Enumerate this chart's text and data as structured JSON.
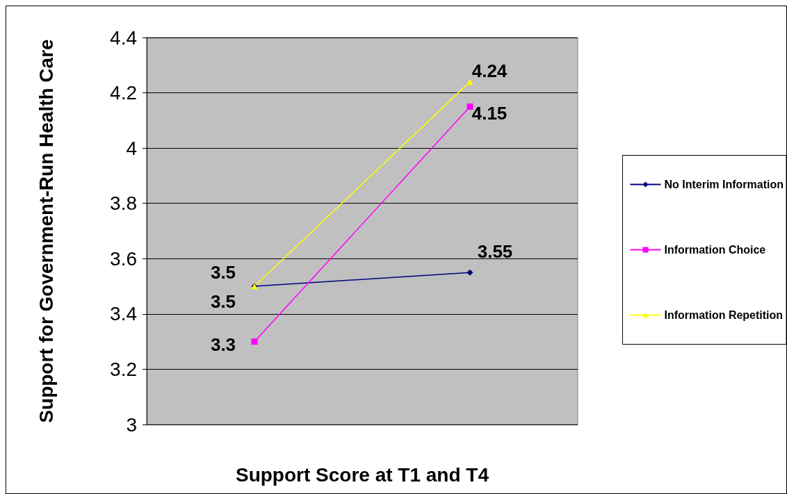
{
  "chart_data": {
    "type": "line",
    "xlabel": "Support Score at T1 and T4",
    "ylabel": "Support for Government-Run Health Care",
    "categories": [
      null,
      null
    ],
    "series": [
      {
        "name": "No Interim Information",
        "color": "#000080",
        "marker": "diamond",
        "values": [
          3.5,
          3.55
        ]
      },
      {
        "name": "Information Choice",
        "color": "#ff00ff",
        "marker": "square",
        "values": [
          3.3,
          4.15
        ]
      },
      {
        "name": "Information Repetition",
        "color": "#ffff00",
        "marker": "triangle",
        "values": [
          3.5,
          4.24
        ]
      }
    ],
    "ylim": [
      3,
      4.4
    ],
    "yticks": [
      3,
      3.2,
      3.4,
      3.6,
      3.8,
      4,
      4.2,
      4.4
    ],
    "grid": "y",
    "legend": "right",
    "data_labels": true
  }
}
